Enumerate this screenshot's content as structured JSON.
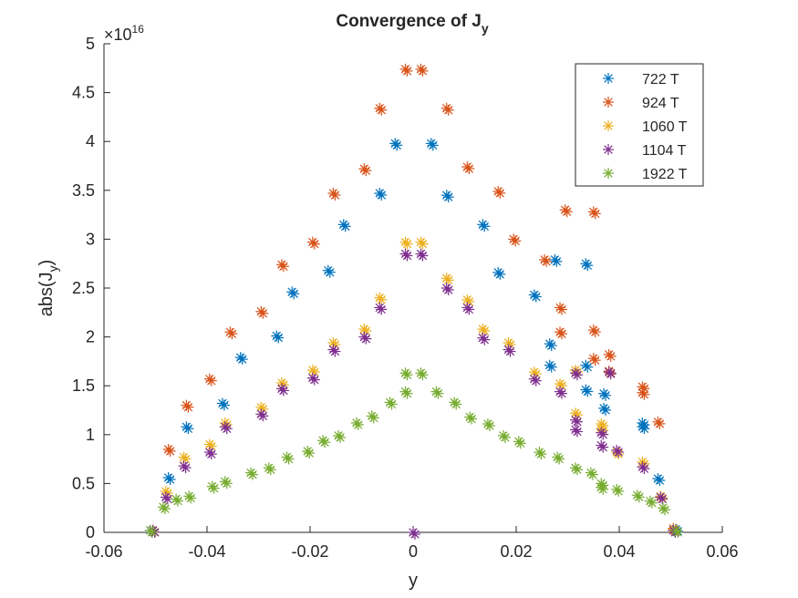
{
  "chart_data": {
    "type": "scatter",
    "title": "Convergence of J",
    "title_subscript": "y",
    "xlabel": "y",
    "ylabel": "abs(J",
    "ylabel_subscript": "y",
    "ylabel_suffix": ")",
    "y_exponent_prefix": "×10",
    "y_exponent": "16",
    "xlim": [
      -0.06,
      0.06
    ],
    "ylim": [
      0,
      5
    ],
    "x_ticks": [
      -0.06,
      -0.04,
      -0.02,
      0,
      0.02,
      0.04,
      0.06
    ],
    "x_tick_labels": [
      "-0.06",
      "-0.04",
      "-0.02",
      "0",
      "0.02",
      "0.04",
      "0.06"
    ],
    "y_ticks": [
      0,
      0.5,
      1,
      1.5,
      2,
      2.5,
      3,
      3.5,
      4,
      4.5,
      5
    ],
    "y_tick_labels": [
      "0",
      "0.5",
      "1",
      "1.5",
      "2",
      "2.5",
      "3",
      "3.5",
      "4",
      "4.5",
      "5"
    ],
    "grid": false,
    "legend_position": "top-right",
    "marker": "asterisk",
    "series": [
      {
        "name": "722 T",
        "color": "#0072BD",
        "points": [
          [
            -0.051,
            0.02
          ],
          [
            -0.0475,
            0.56
          ],
          [
            -0.044,
            1.08
          ],
          [
            -0.037,
            1.32
          ],
          [
            -0.0335,
            1.79
          ],
          [
            -0.0265,
            2.01
          ],
          [
            -0.0235,
            2.46
          ],
          [
            -0.0165,
            2.68
          ],
          [
            -0.0135,
            3.15
          ],
          [
            -0.0065,
            3.47
          ],
          [
            -0.0035,
            3.98
          ],
          [
            0.0035,
            3.98
          ],
          [
            0.0065,
            3.45
          ],
          [
            0.0135,
            3.15
          ],
          [
            0.0165,
            2.66
          ],
          [
            0.0235,
            2.43
          ],
          [
            0.0265,
            1.93
          ],
          [
            0.0265,
            1.71
          ],
          [
            0.0275,
            2.79
          ],
          [
            0.0335,
            1.71
          ],
          [
            0.0335,
            1.46
          ],
          [
            0.0335,
            2.75
          ],
          [
            0.037,
            1.27
          ],
          [
            0.037,
            1.42
          ],
          [
            0.0445,
            1.08
          ],
          [
            0.0445,
            1.12
          ],
          [
            0.0475,
            0.55
          ],
          [
            0.051,
            0.03
          ]
        ]
      },
      {
        "name": "924 T",
        "color": "#D95319",
        "points": [
          [
            -0.0505,
            0.02
          ],
          [
            -0.0475,
            0.85
          ],
          [
            -0.044,
            1.3
          ],
          [
            -0.0395,
            1.57
          ],
          [
            -0.0355,
            2.05
          ],
          [
            -0.0295,
            2.26
          ],
          [
            -0.0255,
            2.74
          ],
          [
            -0.0195,
            2.97
          ],
          [
            -0.0155,
            3.47
          ],
          [
            -0.0095,
            3.72
          ],
          [
            -0.0065,
            4.34
          ],
          [
            -0.0015,
            4.74
          ],
          [
            0.0015,
            4.74
          ],
          [
            0.0065,
            4.34
          ],
          [
            0.0105,
            3.74
          ],
          [
            0.0165,
            3.49
          ],
          [
            0.0195,
            3.0
          ],
          [
            0.0255,
            2.79
          ],
          [
            0.0285,
            2.3
          ],
          [
            0.0285,
            2.05
          ],
          [
            0.0295,
            3.3
          ],
          [
            0.035,
            2.07
          ],
          [
            0.035,
            1.78
          ],
          [
            0.035,
            3.28
          ],
          [
            0.038,
            1.82
          ],
          [
            0.038,
            1.65
          ],
          [
            0.0445,
            1.43
          ],
          [
            0.0445,
            1.49
          ],
          [
            0.0475,
            1.13
          ],
          [
            0.0505,
            0.04
          ]
        ]
      },
      {
        "name": "1060 T",
        "color": "#EDB120",
        "points": [
          [
            -0.0505,
            0.02
          ],
          [
            -0.048,
            0.42
          ],
          [
            -0.0445,
            0.77
          ],
          [
            -0.0395,
            0.9
          ],
          [
            -0.0365,
            1.12
          ],
          [
            -0.0295,
            1.28
          ],
          [
            -0.0255,
            1.53
          ],
          [
            -0.0195,
            1.66
          ],
          [
            -0.0155,
            1.94
          ],
          [
            -0.0095,
            2.08
          ],
          [
            -0.0065,
            2.4
          ],
          [
            -0.0015,
            2.97
          ],
          [
            0.0015,
            2.97
          ],
          [
            0.0065,
            2.6
          ],
          [
            0.0105,
            2.38
          ],
          [
            0.0135,
            2.08
          ],
          [
            0.0185,
            1.94
          ],
          [
            0.0235,
            1.64
          ],
          [
            0.0285,
            1.52
          ],
          [
            0.0315,
            1.66
          ],
          [
            0.0315,
            1.22
          ],
          [
            0.0365,
            1.06
          ],
          [
            0.0365,
            1.11
          ],
          [
            0.0395,
            0.82
          ],
          [
            0.0445,
            0.72
          ],
          [
            0.048,
            0.37
          ],
          [
            0.0505,
            0.03
          ]
        ]
      },
      {
        "name": "1104 T",
        "color": "#7E2F8E",
        "points": [
          [
            -0.0505,
            0.02
          ],
          [
            -0.048,
            0.36
          ],
          [
            -0.0445,
            0.68
          ],
          [
            -0.0395,
            0.82
          ],
          [
            -0.0365,
            1.08
          ],
          [
            -0.0295,
            1.21
          ],
          [
            -0.0255,
            1.47
          ],
          [
            -0.0195,
            1.58
          ],
          [
            -0.0155,
            1.87
          ],
          [
            -0.0095,
            2.0
          ],
          [
            -0.0065,
            2.3
          ],
          [
            -0.0015,
            2.85
          ],
          [
            0.0,
            0.0
          ],
          [
            0.0015,
            2.85
          ],
          [
            0.0065,
            2.5
          ],
          [
            0.0105,
            2.3
          ],
          [
            0.0135,
            1.99
          ],
          [
            0.0185,
            1.87
          ],
          [
            0.0235,
            1.57
          ],
          [
            0.0285,
            1.44
          ],
          [
            0.0315,
            1.63
          ],
          [
            0.0315,
            1.05
          ],
          [
            0.0315,
            1.15
          ],
          [
            0.0365,
            0.89
          ],
          [
            0.0365,
            1.02
          ],
          [
            0.038,
            1.64
          ],
          [
            0.0395,
            0.84
          ],
          [
            0.0445,
            0.67
          ],
          [
            0.048,
            0.36
          ],
          [
            0.0505,
            0.02
          ]
        ]
      },
      {
        "name": "1922 T",
        "color": "#77AC30",
        "points": [
          [
            -0.051,
            0.02
          ],
          [
            -0.0485,
            0.26
          ],
          [
            -0.046,
            0.34
          ],
          [
            -0.0435,
            0.37
          ],
          [
            -0.039,
            0.47
          ],
          [
            -0.0365,
            0.52
          ],
          [
            -0.0315,
            0.61
          ],
          [
            -0.028,
            0.66
          ],
          [
            -0.0245,
            0.77
          ],
          [
            -0.0205,
            0.83
          ],
          [
            -0.0175,
            0.94
          ],
          [
            -0.0145,
            0.99
          ],
          [
            -0.011,
            1.12
          ],
          [
            -0.008,
            1.19
          ],
          [
            -0.0045,
            1.33
          ],
          [
            -0.0015,
            1.44
          ],
          [
            0.0015,
            1.63
          ],
          [
            0.0045,
            1.44
          ],
          [
            0.008,
            1.33
          ],
          [
            0.011,
            1.18
          ],
          [
            0.0145,
            1.11
          ],
          [
            0.0175,
            0.99
          ],
          [
            0.0205,
            0.93
          ],
          [
            0.0245,
            0.82
          ],
          [
            0.028,
            0.77
          ],
          [
            0.0315,
            0.66
          ],
          [
            0.0345,
            0.61
          ],
          [
            0.0365,
            0.5
          ],
          [
            0.0365,
            0.46
          ],
          [
            0.0395,
            0.44
          ],
          [
            0.0435,
            0.38
          ],
          [
            0.046,
            0.32
          ],
          [
            0.0485,
            0.25
          ],
          [
            0.051,
            0.02
          ],
          [
            -0.0015,
            1.63
          ]
        ]
      }
    ]
  }
}
